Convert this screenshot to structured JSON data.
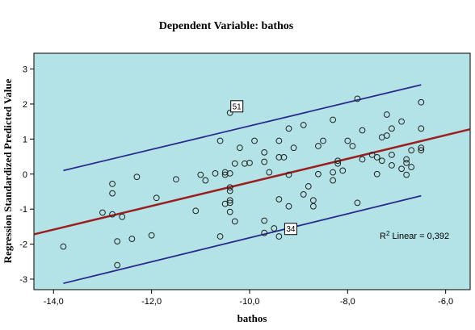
{
  "chart_data": {
    "type": "scatter",
    "title": "Dependent Variable: bathos",
    "xlabel": "bathos",
    "ylabel": "Regression Standardized Predicted Value",
    "xlim": [
      -14.4,
      -5.5
    ],
    "ylim": [
      -3.3,
      3.45
    ],
    "xticks": [
      -14,
      -12,
      -10,
      -8,
      -6
    ],
    "xtick_labels": [
      "-14,0",
      "-12,0",
      "-10,0",
      "-8,0",
      "-6,0"
    ],
    "yticks": [
      -3,
      -2,
      -1,
      0,
      1,
      2,
      3
    ],
    "ytick_labels": [
      "-3",
      "-2",
      "-1",
      "0",
      "1",
      "2",
      "3"
    ],
    "grid": false,
    "background_color": "#b3e3e6",
    "fit_line": {
      "x": [
        -14.4,
        -5.5
      ],
      "y": [
        -1.72,
        1.28
      ],
      "color": "#9c1f1f"
    },
    "upper_band": {
      "x": [
        -13.8,
        -6.5
      ],
      "y": [
        0.1,
        2.55
      ],
      "color": "#2a2a8c"
    },
    "lower_band": {
      "x": [
        -13.8,
        -6.5
      ],
      "y": [
        -3.12,
        -0.62
      ],
      "color": "#2a2a8c"
    },
    "r2_label": "R",
    "r2_sup": "2",
    "r2_text": " Linear = 0,392",
    "point_labels": [
      {
        "text": "51",
        "x": -10.4,
        "y": 1.75
      },
      {
        "text": "34",
        "x": -9.3,
        "y": -1.75
      }
    ],
    "points": [
      [
        -13.8,
        -2.07
      ],
      [
        -13.0,
        -1.1
      ],
      [
        -12.8,
        -0.28
      ],
      [
        -12.8,
        -0.55
      ],
      [
        -12.8,
        -1.15
      ],
      [
        -12.7,
        -1.92
      ],
      [
        -12.7,
        -2.6
      ],
      [
        -12.6,
        -1.22
      ],
      [
        -12.4,
        -1.85
      ],
      [
        -12.3,
        -0.08
      ],
      [
        -12.0,
        -1.75
      ],
      [
        -11.9,
        -0.68
      ],
      [
        -11.5,
        -0.15
      ],
      [
        -11.1,
        -1.05
      ],
      [
        -11.0,
        -0.02
      ],
      [
        -10.9,
        -0.18
      ],
      [
        -10.7,
        0.02
      ],
      [
        -10.6,
        0.95
      ],
      [
        -10.6,
        -1.78
      ],
      [
        -10.5,
        -0.02
      ],
      [
        -10.5,
        0.05
      ],
      [
        -10.5,
        -0.85
      ],
      [
        -10.4,
        -0.82
      ],
      [
        -10.4,
        -0.38
      ],
      [
        -10.4,
        -0.48
      ],
      [
        -10.4,
        -0.75
      ],
      [
        -10.4,
        -1.08
      ],
      [
        -10.4,
        0.02
      ],
      [
        -10.4,
        1.75
      ],
      [
        -10.3,
        -1.35
      ],
      [
        -10.3,
        0.3
      ],
      [
        -10.2,
        0.75
      ],
      [
        -10.1,
        0.3
      ],
      [
        -10.0,
        0.32
      ],
      [
        -9.9,
        0.95
      ],
      [
        -9.7,
        0.35
      ],
      [
        -9.7,
        0.62
      ],
      [
        -9.7,
        -1.33
      ],
      [
        -9.7,
        -1.68
      ],
      [
        -9.6,
        0.05
      ],
      [
        -9.5,
        -1.55
      ],
      [
        -9.4,
        -0.72
      ],
      [
        -9.4,
        0.48
      ],
      [
        -9.4,
        0.95
      ],
      [
        -9.4,
        -1.78
      ],
      [
        -9.3,
        0.48
      ],
      [
        -9.2,
        1.3
      ],
      [
        -9.2,
        -0.02
      ],
      [
        -9.2,
        -0.92
      ],
      [
        -9.1,
        0.75
      ],
      [
        -8.9,
        1.4
      ],
      [
        -8.9,
        -0.58
      ],
      [
        -8.8,
        -0.35
      ],
      [
        -8.7,
        -0.75
      ],
      [
        -8.7,
        -0.92
      ],
      [
        -8.6,
        0.8
      ],
      [
        -8.6,
        0.0
      ],
      [
        -8.5,
        0.95
      ],
      [
        -8.3,
        1.55
      ],
      [
        -8.3,
        0.05
      ],
      [
        -8.3,
        -0.18
      ],
      [
        -8.2,
        0.3
      ],
      [
        -8.2,
        0.38
      ],
      [
        -8.1,
        0.1
      ],
      [
        -8.0,
        0.95
      ],
      [
        -7.9,
        0.8
      ],
      [
        -7.8,
        2.15
      ],
      [
        -7.8,
        -0.82
      ],
      [
        -7.7,
        1.25
      ],
      [
        -7.7,
        0.42
      ],
      [
        -7.5,
        0.55
      ],
      [
        -7.4,
        0.0
      ],
      [
        -7.4,
        0.48
      ],
      [
        -7.3,
        1.05
      ],
      [
        -7.3,
        0.38
      ],
      [
        -7.2,
        1.7
      ],
      [
        -7.2,
        1.1
      ],
      [
        -7.1,
        1.3
      ],
      [
        -7.1,
        0.55
      ],
      [
        -7.1,
        0.25
      ],
      [
        -6.9,
        1.5
      ],
      [
        -6.9,
        0.15
      ],
      [
        -6.8,
        0.42
      ],
      [
        -6.8,
        0.32
      ],
      [
        -6.8,
        -0.02
      ],
      [
        -6.7,
        0.68
      ],
      [
        -6.7,
        0.2
      ],
      [
        -6.5,
        2.05
      ],
      [
        -6.5,
        1.3
      ],
      [
        -6.5,
        0.75
      ],
      [
        -6.5,
        0.68
      ]
    ]
  }
}
